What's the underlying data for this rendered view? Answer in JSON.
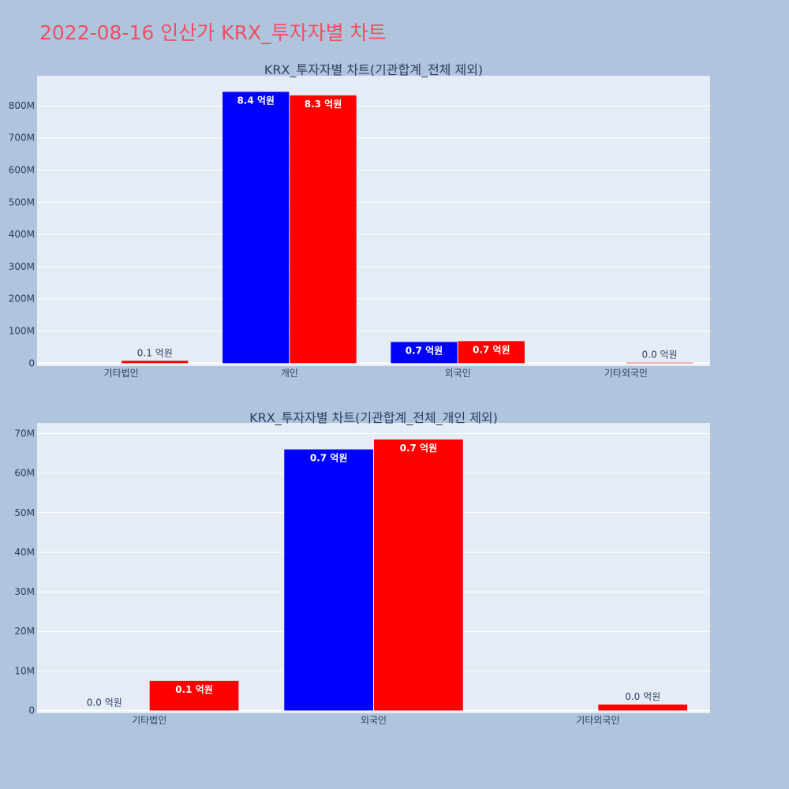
{
  "page": {
    "title": "2022-08-16 인산가 KRX_투자자별 차트",
    "title_color": "#ef4f5f",
    "background": "#b0c4de"
  },
  "chart_data": [
    {
      "type": "bar",
      "title": "KRX_투자자별 차트(기관합계_전체 제외)",
      "categories": [
        "기타법인",
        "개인",
        "외국인",
        "기타외국인"
      ],
      "series": [
        {
          "color": "#0000ff",
          "values": [
            0,
            843000000,
            66000000,
            0
          ],
          "labels": [
            "",
            "8.4 억원",
            "0.7 억원",
            ""
          ]
        },
        {
          "color": "#ff0000",
          "values": [
            7500000,
            832000000,
            68500000,
            1500000
          ],
          "labels": [
            "0.1 억원",
            "8.3 억원",
            "0.7 억원",
            "0.0 억원"
          ]
        }
      ],
      "yticks": [
        0,
        100000000,
        200000000,
        300000000,
        400000000,
        500000000,
        600000000,
        700000000,
        800000000
      ],
      "ytick_labels": [
        "0",
        "100M",
        "200M",
        "300M",
        "400M",
        "500M",
        "600M",
        "700M",
        "800M"
      ],
      "ylim": [
        -9000000,
        893000000
      ],
      "grid": true,
      "plot_bg": "#e5ecf6"
    },
    {
      "type": "bar",
      "title": "KRX_투자자별 차트(기관합계_전체_개인 제외)",
      "categories": [
        "기타법인",
        "외국인",
        "기타외국인"
      ],
      "series": [
        {
          "color": "#0000ff",
          "values": [
            0,
            66000000,
            0
          ],
          "labels": [
            "0.0 억원",
            "0.7 억원",
            ""
          ]
        },
        {
          "color": "#ff0000",
          "values": [
            7500000,
            68500000,
            1500000
          ],
          "labels": [
            "0.1 억원",
            "0.7 억원",
            "0.0 억원"
          ]
        }
      ],
      "yticks": [
        0,
        10000000,
        20000000,
        30000000,
        40000000,
        50000000,
        60000000,
        70000000
      ],
      "ytick_labels": [
        "0",
        "10M",
        "20M",
        "30M",
        "40M",
        "50M",
        "60M",
        "70M"
      ],
      "ylim": [
        -700000,
        72700000
      ],
      "grid": true,
      "plot_bg": "#e5ecf6"
    }
  ]
}
